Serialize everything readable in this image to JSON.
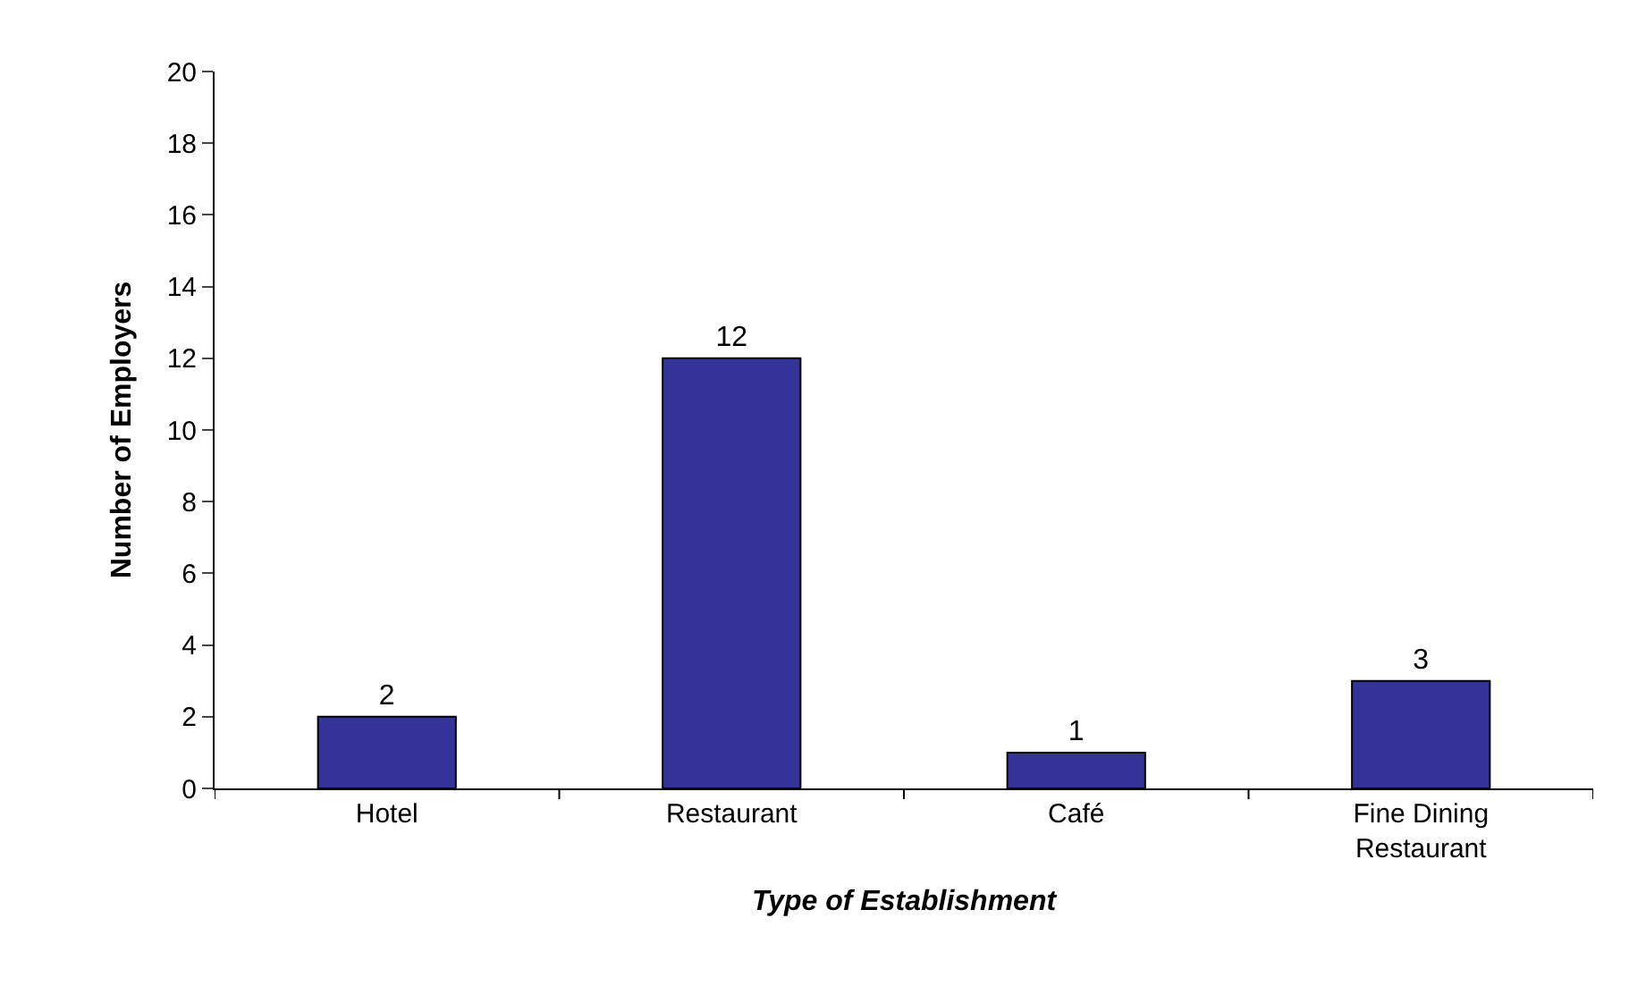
{
  "chart_data": {
    "type": "bar",
    "xlabel": "Type of Establishment",
    "ylabel": "Number of Employers",
    "categories": [
      "Hotel",
      "Restaurant",
      "Café",
      "Fine Dining Restaurant"
    ],
    "values": [
      2,
      12,
      1,
      3
    ],
    "color": "#333399",
    "ylim": [
      0,
      20
    ],
    "yticks": [
      0,
      2,
      4,
      6,
      8,
      10,
      12,
      14,
      16,
      18,
      20
    ],
    "data_labels": true
  }
}
